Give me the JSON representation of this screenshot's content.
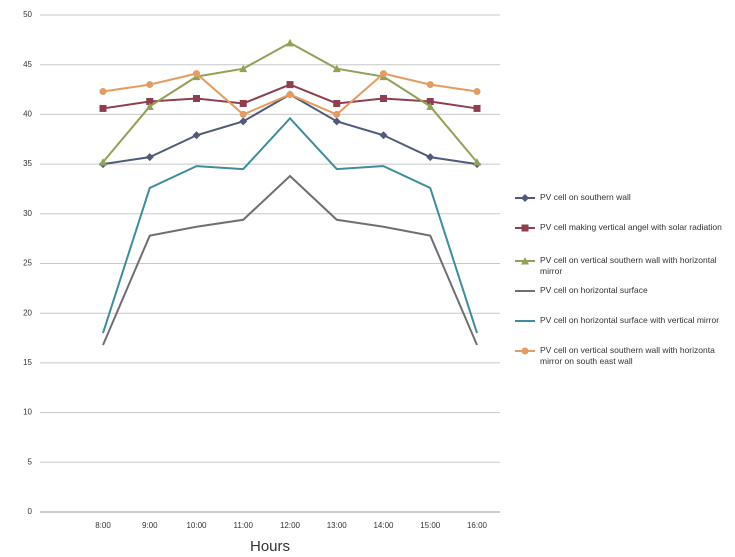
{
  "chart_data": {
    "type": "line",
    "x_label": "Hours",
    "categories": [
      "8:00",
      "9:00",
      "10:00",
      "11:00",
      "12:00",
      "13:00",
      "14:00",
      "15:00",
      "16:00"
    ],
    "series": [
      {
        "name": "PV cell on southern wall",
        "color": "#4f5b78",
        "marker": "diamond",
        "values": [
          35,
          35.7,
          37.9,
          39.3,
          42,
          39.3,
          37.9,
          35.7,
          35
        ]
      },
      {
        "name": "PV cell making vertical angel with solar radiation",
        "color": "#8e3f4f",
        "marker": "square",
        "values": [
          40.6,
          41.3,
          41.6,
          41.1,
          43,
          41.1,
          41.6,
          41.3,
          40.6
        ]
      },
      {
        "name": "PV cell on vertical southern wall with horizontal mirror",
        "color": "#8fa256",
        "marker": "triangle",
        "values": [
          35.2,
          40.8,
          43.8,
          44.6,
          47.2,
          44.6,
          43.8,
          40.8,
          35.2
        ]
      },
      {
        "name": "PV cell on horizontal surface",
        "color": "#6f6f73",
        "marker": "none",
        "values": [
          16.8,
          27.8,
          28.7,
          29.4,
          33.8,
          29.4,
          28.7,
          27.8,
          16.8
        ]
      },
      {
        "name": "PV cell on horizontal surface with vertical mirror",
        "color": "#3e8c9c",
        "marker": "none",
        "values": [
          18,
          32.6,
          34.8,
          34.5,
          39.6,
          34.5,
          34.8,
          32.6,
          18
        ]
      },
      {
        "name": "PV cell on vertical southern wall with horizonta mirror on south east wall",
        "color": "#e39c62",
        "marker": "circle",
        "values": [
          42.3,
          43,
          44.1,
          40,
          42,
          40,
          44.1,
          43,
          42.3
        ]
      }
    ],
    "ylim": [
      0,
      50
    ],
    "yticks": [
      0,
      5,
      10,
      15,
      20,
      25,
      30,
      35,
      40,
      45,
      50
    ],
    "grid": true
  }
}
